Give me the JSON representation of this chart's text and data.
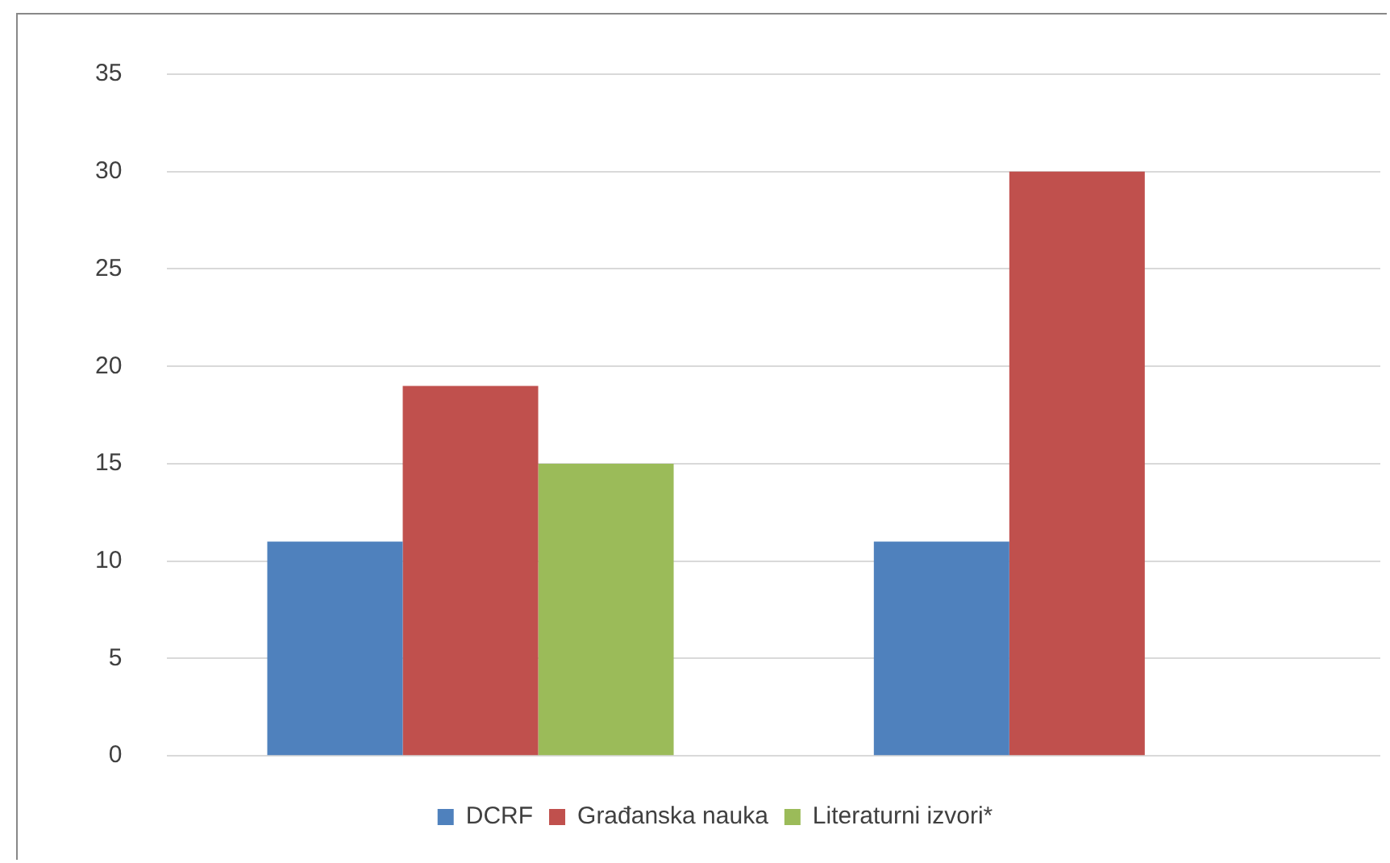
{
  "chart_data": {
    "type": "bar",
    "categories": [
      null,
      null
    ],
    "series": [
      {
        "name": "DCRF",
        "color": "#4f81bd",
        "values": [
          11,
          11
        ]
      },
      {
        "name": "Građanska nauka",
        "color": "#c0504d",
        "values": [
          19,
          30
        ]
      },
      {
        "name": "Literaturni izvori*",
        "color": "#9bbb59",
        "values": [
          15,
          null
        ]
      }
    ],
    "ylim": [
      0,
      35
    ],
    "yticks": [
      0,
      5,
      10,
      15,
      20,
      25,
      30,
      35
    ],
    "grid": "y",
    "legend": "bottom"
  }
}
